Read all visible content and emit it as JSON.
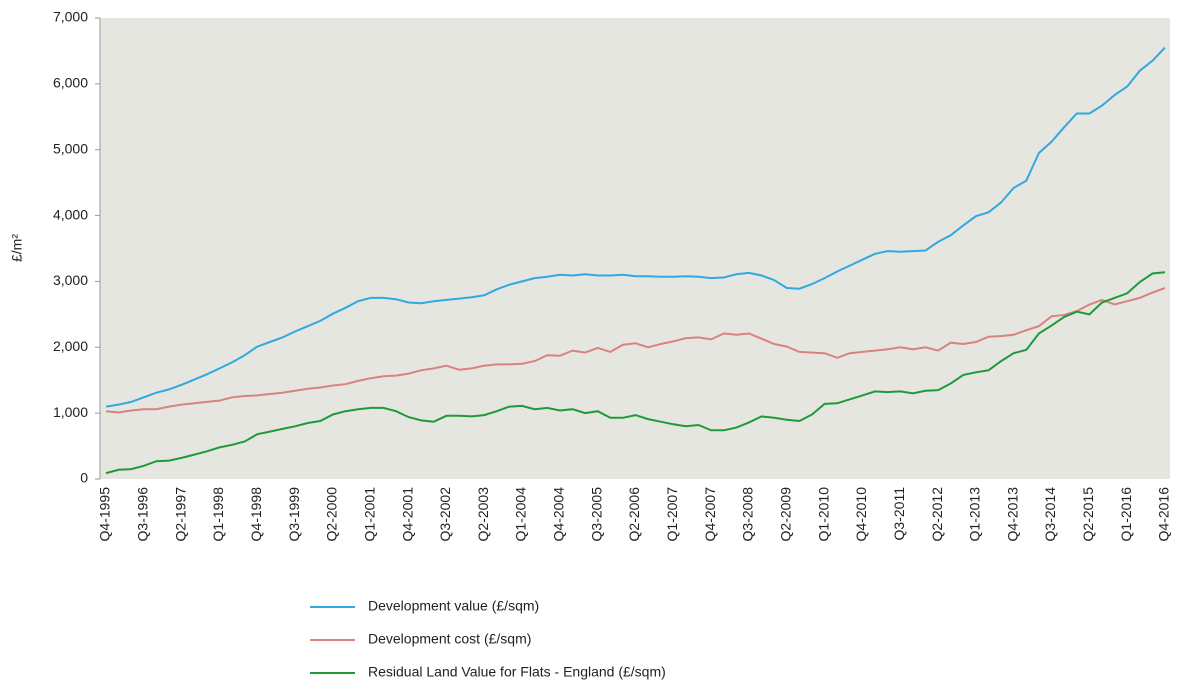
{
  "chart_data": {
    "type": "line",
    "ylabel": "£/m²",
    "categories": [
      "Q4-1995",
      null,
      null,
      "Q3-1996",
      null,
      null,
      "Q2-1997",
      null,
      null,
      "Q1-1998",
      null,
      null,
      "Q4-1998",
      null,
      null,
      "Q3-1999",
      null,
      null,
      "Q2-2000",
      null,
      null,
      "Q1-2001",
      null,
      null,
      "Q4-2001",
      null,
      null,
      "Q3-2002",
      null,
      null,
      "Q2-2003",
      null,
      null,
      "Q1-2004",
      null,
      null,
      "Q4-2004",
      null,
      null,
      "Q3-2005",
      null,
      null,
      "Q2-2006",
      null,
      null,
      "Q1-2007",
      null,
      null,
      "Q4-2007",
      null,
      null,
      "Q3-2008",
      null,
      null,
      "Q2-2009",
      null,
      null,
      "Q1-2010",
      null,
      null,
      "Q4-2010",
      null,
      null,
      "Q3-2011",
      null,
      null,
      "Q2-2012",
      null,
      null,
      "Q1-2013",
      null,
      null,
      "Q4-2013",
      null,
      null,
      "Q3-2014",
      null,
      null,
      "Q2-2015",
      null,
      null,
      "Q1-2016",
      null,
      null,
      "Q4-2016"
    ],
    "series": [
      {
        "name": "Development value (£/sqm)",
        "color": "#31a8e0",
        "values": [
          1100,
          1130,
          1170,
          1240,
          1310,
          1360,
          1430,
          1510,
          1590,
          1680,
          1770,
          1880,
          2010,
          2080,
          2150,
          2240,
          2320,
          2400,
          2510,
          2600,
          2700,
          2750,
          2750,
          2730,
          2680,
          2670,
          2700,
          2720,
          2740,
          2760,
          2790,
          2880,
          2950,
          3000,
          3050,
          3070,
          3100,
          3090,
          3110,
          3090,
          3090,
          3100,
          3080,
          3080,
          3070,
          3070,
          3080,
          3070,
          3050,
          3060,
          3110,
          3130,
          3090,
          3020,
          2900,
          2890,
          2960,
          3050,
          3150,
          3240,
          3330,
          3420,
          3460,
          3450,
          3460,
          3470,
          3600,
          3700,
          3850,
          3990,
          4050,
          4200,
          4420,
          4530,
          4950,
          5120,
          5340,
          5550,
          5550,
          5670,
          5830,
          5960,
          6200,
          6350,
          6550
        ]
      },
      {
        "name": "Development cost (£/sqm)",
        "color": "#d9837f",
        "values": [
          1030,
          1010,
          1040,
          1060,
          1060,
          1100,
          1130,
          1150,
          1170,
          1190,
          1240,
          1260,
          1270,
          1290,
          1310,
          1340,
          1370,
          1390,
          1420,
          1440,
          1490,
          1530,
          1560,
          1570,
          1600,
          1650,
          1680,
          1720,
          1660,
          1680,
          1720,
          1740,
          1740,
          1750,
          1790,
          1880,
          1870,
          1950,
          1920,
          1990,
          1930,
          2040,
          2060,
          2000,
          2050,
          2090,
          2140,
          2150,
          2120,
          2210,
          2190,
          2210,
          2130,
          2050,
          2010,
          1930,
          1920,
          1910,
          1840,
          1910,
          1930,
          1950,
          1970,
          2000,
          1970,
          2000,
          1950,
          2070,
          2050,
          2080,
          2160,
          2170,
          2190,
          2260,
          2320,
          2470,
          2490,
          2550,
          2650,
          2720,
          2650,
          2700,
          2750,
          2830,
          2900
        ]
      },
      {
        "name": "Residual Land Value for Flats - England (£/sqm)",
        "color": "#1e9a3a",
        "values": [
          90,
          140,
          150,
          200,
          270,
          280,
          320,
          370,
          420,
          480,
          520,
          570,
          680,
          720,
          760,
          800,
          850,
          880,
          980,
          1030,
          1060,
          1080,
          1080,
          1030,
          940,
          890,
          870,
          960,
          960,
          950,
          970,
          1030,
          1100,
          1110,
          1060,
          1080,
          1040,
          1060,
          1000,
          1030,
          930,
          930,
          970,
          910,
          870,
          830,
          800,
          820,
          740,
          740,
          780,
          860,
          950,
          930,
          900,
          880,
          980,
          1140,
          1150,
          1210,
          1270,
          1330,
          1320,
          1330,
          1300,
          1340,
          1350,
          1450,
          1580,
          1620,
          1650,
          1790,
          1910,
          1960,
          2210,
          2330,
          2460,
          2540,
          2500,
          2680,
          2750,
          2820,
          2990,
          3120,
          3140
        ]
      }
    ],
    "ylim": [
      0,
      7000
    ],
    "yticks": [
      0,
      {
        "value": 1000,
        "label": "1,000"
      },
      {
        "value": 2000,
        "label": "2,000"
      },
      {
        "value": 3000,
        "label": "3,000"
      },
      {
        "value": 4000,
        "label": "4,000"
      },
      {
        "value": 5000,
        "label": "5,000"
      },
      {
        "value": 6000,
        "label": "6,000"
      },
      {
        "value": 7000,
        "label": "7,000"
      }
    ],
    "grid": false,
    "legend": "bottom"
  }
}
